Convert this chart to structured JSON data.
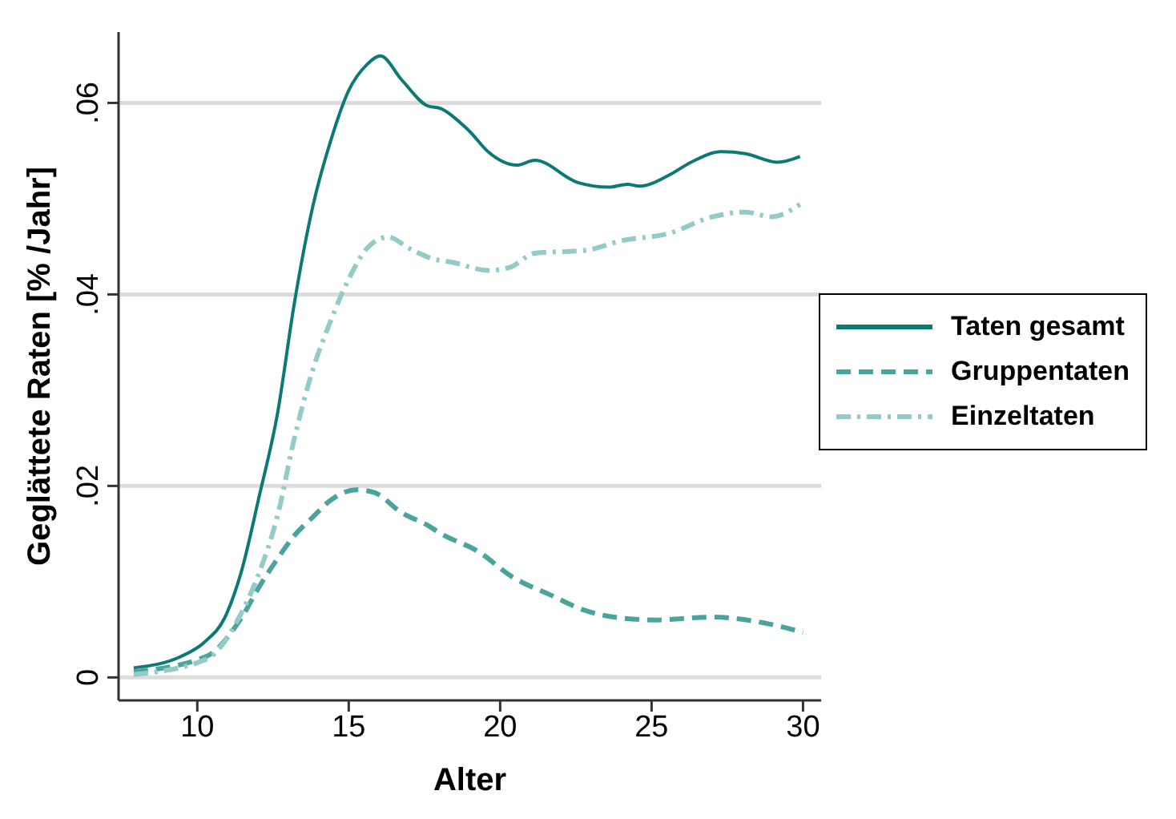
{
  "chart_data": {
    "type": "line",
    "xlabel": "Alter",
    "ylabel": "Geglättete Raten [% /Jahr]",
    "xlim": [
      7.4,
      30.6
    ],
    "xticks": [
      10,
      15,
      20,
      25,
      30
    ],
    "ylim": [
      -0.0024,
      0.0674
    ],
    "yticks": [
      {
        "value": 0,
        "label": "0"
      },
      {
        "value": 0.02,
        "label": ".02"
      },
      {
        "value": 0.04,
        "label": ".04"
      },
      {
        "value": 0.06,
        "label": ".06"
      }
    ],
    "grid": "y",
    "legend": "right",
    "marker": "none",
    "series": [
      {
        "name": "Taten gesamt",
        "color": "#0b7a75",
        "line_style": "solid",
        "x": [
          7.9,
          9.47,
          10.28,
          10.9,
          11.45,
          12.05,
          12.65,
          13.2,
          13.8,
          14.4,
          15.0,
          15.6,
          16.05,
          16.75,
          17.6,
          18.05,
          18.8,
          19.0,
          19.6,
          20.55,
          21.15,
          22.55,
          23.6,
          24.2,
          24.6,
          25.6,
          26.3,
          27.3,
          28.1,
          29.15,
          29.9
        ],
        "values": [
          0.001,
          0.0022,
          0.0038,
          0.0062,
          0.011,
          0.019,
          0.0276,
          0.039,
          0.049,
          0.056,
          0.0613,
          0.064,
          0.0649,
          0.0624,
          0.0597,
          0.0594,
          0.0576,
          0.057,
          0.0549,
          0.0535,
          0.054,
          0.0517,
          0.0512,
          0.0515,
          0.0513,
          0.0525,
          0.0538,
          0.0549,
          0.0547,
          0.0538,
          0.0544
        ]
      },
      {
        "name": "Gruppentaten",
        "color": "#4aa39d",
        "line_style": "dashed",
        "x": [
          7.9,
          10.3,
          11.45,
          12.05,
          12.65,
          13.2,
          13.8,
          14.4,
          15.25,
          15.85,
          16.75,
          17.6,
          18.05,
          19.25,
          20.45,
          21.6,
          22.8,
          24.0,
          25.15,
          27.0,
          28.7,
          30.0
        ],
        "values": [
          0.0006,
          0.0022,
          0.0062,
          0.0095,
          0.0124,
          0.0148,
          0.0167,
          0.0185,
          0.0196,
          0.0193,
          0.0172,
          0.0159,
          0.015,
          0.0132,
          0.0104,
          0.0087,
          0.007,
          0.0062,
          0.006,
          0.0063,
          0.0057,
          0.0047
        ]
      },
      {
        "name": "Einzeltaten",
        "color": "#94cbc8",
        "line_style": "dashdot",
        "x": [
          7.9,
          10.3,
          11.45,
          12.05,
          12.65,
          13.2,
          13.8,
          14.4,
          15.0,
          15.6,
          16.3,
          17.0,
          17.7,
          18.5,
          19.6,
          20.3,
          21.15,
          22.8,
          24.0,
          25.6,
          27.0,
          28.1,
          28.95,
          29.9
        ],
        "values": [
          0.0003,
          0.0019,
          0.0067,
          0.011,
          0.0169,
          0.0249,
          0.032,
          0.0372,
          0.0416,
          0.0448,
          0.046,
          0.0448,
          0.0438,
          0.0433,
          0.0425,
          0.0428,
          0.0443,
          0.0446,
          0.0456,
          0.0464,
          0.0481,
          0.0486,
          0.0481,
          0.0494
        ]
      }
    ]
  }
}
